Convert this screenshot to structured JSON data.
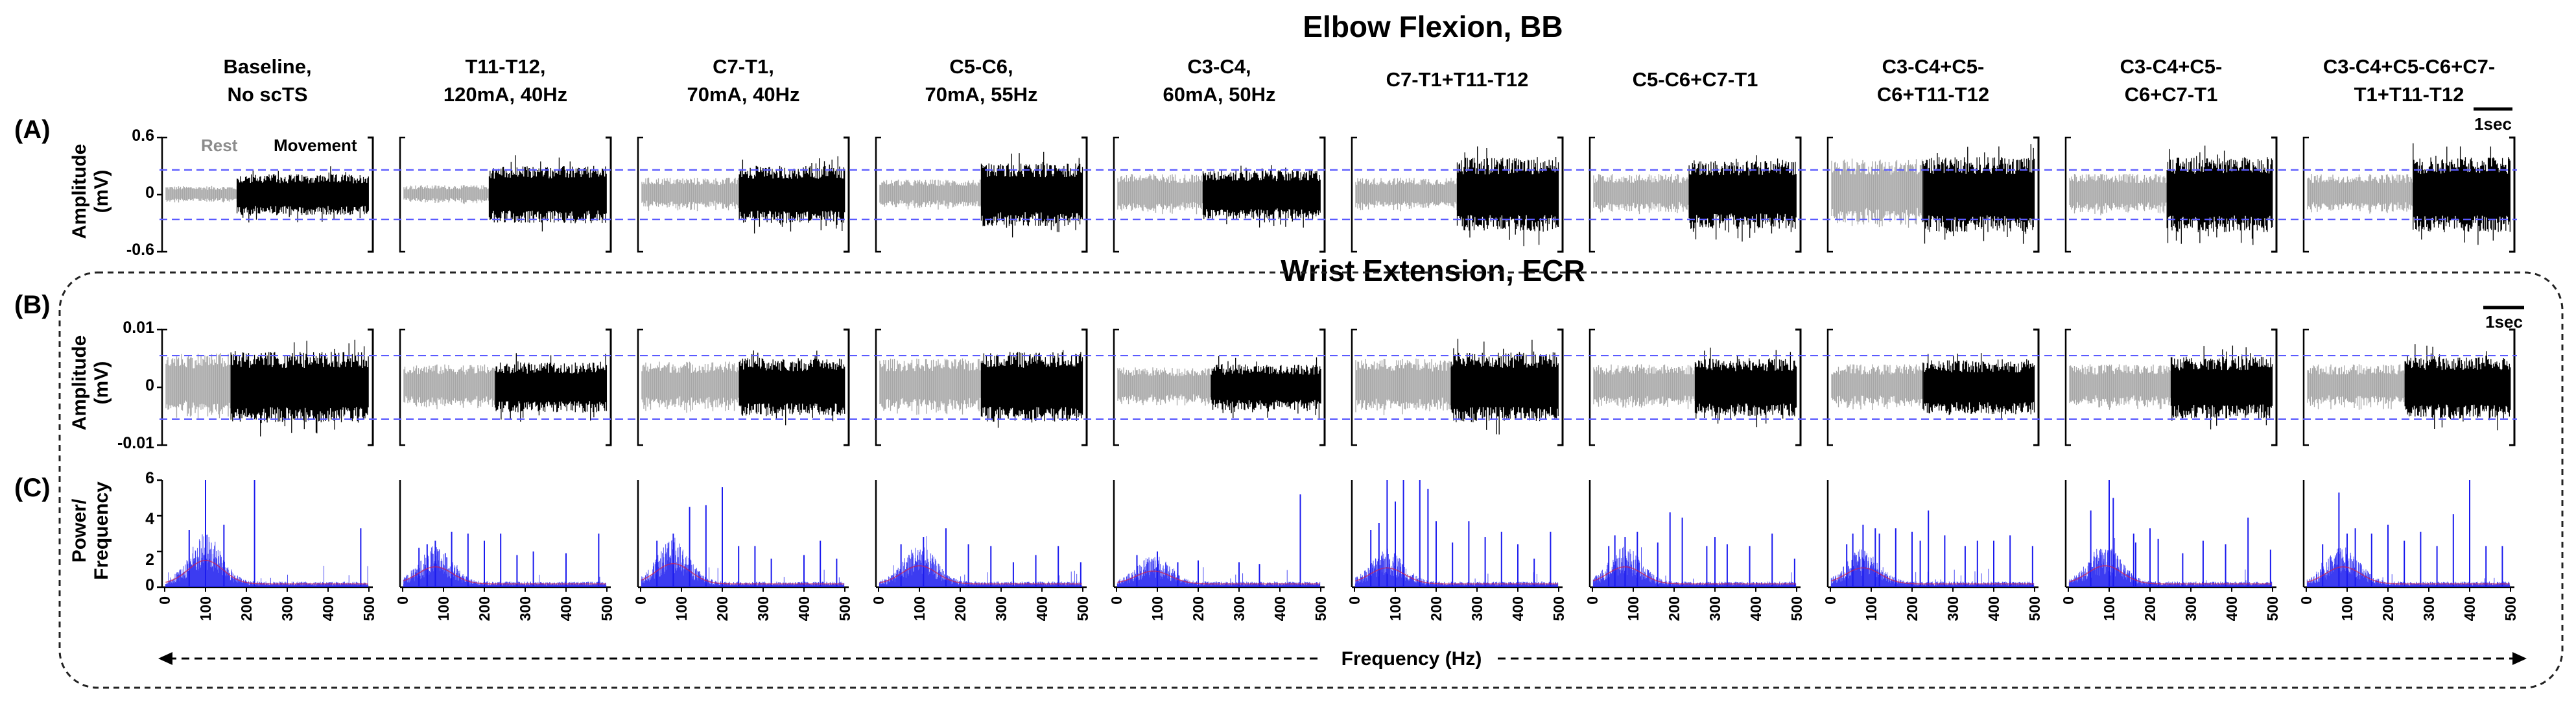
{
  "figure": {
    "title_a": "Elbow Flexion, BB",
    "title_b": "Wrist Extension, ECR",
    "panel_labels": [
      "(A)",
      "(B)",
      "(C)"
    ],
    "rest_label": "Rest",
    "movement_label": "Movement",
    "scale_bar_label": "1sec",
    "frequency_label": "Frequency (Hz)"
  },
  "conditions": [
    {
      "line1": "Baseline,",
      "line2": "No scTS"
    },
    {
      "line1": "T11-T12,",
      "line2": "120mA, 40Hz"
    },
    {
      "line1": "C7-T1,",
      "line2": "70mA, 40Hz"
    },
    {
      "line1": "C5-C6,",
      "line2": "70mA, 55Hz"
    },
    {
      "line1": "C3-C4,",
      "line2": "60mA, 50Hz"
    },
    {
      "line1": "C7-T1+T11-T12",
      "line2": ""
    },
    {
      "line1": "C5-C6+C7-T1",
      "line2": ""
    },
    {
      "line1": "C3-C4+C5-",
      "line2": "C6+T11-T12"
    },
    {
      "line1": "C3-C4+C5-",
      "line2": "C6+C7-T1"
    },
    {
      "line1": "C3-C4+C5-C6+C7-",
      "line2": "T1+T11-T12"
    }
  ],
  "chart_data": [
    {
      "type": "line",
      "panel": "(A)",
      "title": "Elbow Flexion, BB",
      "ylabel_line1": "Amplitude",
      "ylabel_line2": "(mV)",
      "yticks": [
        "0.6",
        "0",
        "-0.6"
      ],
      "ylim": [
        -0.6,
        0.6
      ],
      "threshold_mV": [
        0.26,
        -0.26
      ],
      "series": [
        {
          "condition": 0,
          "rest_amplitude_mV": 0.09,
          "movement_amplitude_mV": 0.3,
          "movement_onset_fraction": 0.35
        },
        {
          "condition": 1,
          "rest_amplitude_mV": 0.1,
          "movement_amplitude_mV": 0.42,
          "movement_onset_fraction": 0.42
        },
        {
          "condition": 2,
          "rest_amplitude_mV": 0.18,
          "movement_amplitude_mV": 0.42,
          "movement_onset_fraction": 0.48
        },
        {
          "condition": 3,
          "rest_amplitude_mV": 0.16,
          "movement_amplitude_mV": 0.46,
          "movement_onset_fraction": 0.5
        },
        {
          "condition": 4,
          "rest_amplitude_mV": 0.22,
          "movement_amplitude_mV": 0.36,
          "movement_onset_fraction": 0.42
        },
        {
          "condition": 5,
          "rest_amplitude_mV": 0.18,
          "movement_amplitude_mV": 0.54,
          "movement_onset_fraction": 0.5
        },
        {
          "condition": 6,
          "rest_amplitude_mV": 0.22,
          "movement_amplitude_mV": 0.5,
          "movement_onset_fraction": 0.47
        },
        {
          "condition": 7,
          "rest_amplitude_mV": 0.38,
          "movement_amplitude_mV": 0.55,
          "movement_onset_fraction": 0.45
        },
        {
          "condition": 8,
          "rest_amplitude_mV": 0.22,
          "movement_amplitude_mV": 0.55,
          "movement_onset_fraction": 0.48
        },
        {
          "condition": 9,
          "rest_amplitude_mV": 0.22,
          "movement_amplitude_mV": 0.55,
          "movement_onset_fraction": 0.52
        }
      ]
    },
    {
      "type": "line",
      "panel": "(B)",
      "title": "Wrist Extension, ECR",
      "ylabel_line1": "Amplitude",
      "ylabel_line2": "(mV)",
      "yticks": [
        "0.01",
        "0",
        "-0.01"
      ],
      "ylim": [
        -0.01,
        0.01
      ],
      "threshold_mV": [
        0.0055,
        -0.0055
      ],
      "series": [
        {
          "condition": 0,
          "rest_amplitude_mV": 0.006,
          "movement_amplitude_mV": 0.0085,
          "movement_onset_fraction": 0.32
        },
        {
          "condition": 1,
          "rest_amplitude_mV": 0.004,
          "movement_amplitude_mV": 0.006,
          "movement_onset_fraction": 0.45
        },
        {
          "condition": 2,
          "rest_amplitude_mV": 0.0045,
          "movement_amplitude_mV": 0.007,
          "movement_onset_fraction": 0.48
        },
        {
          "condition": 3,
          "rest_amplitude_mV": 0.005,
          "movement_amplitude_mV": 0.0085,
          "movement_onset_fraction": 0.5
        },
        {
          "condition": 4,
          "rest_amplitude_mV": 0.0035,
          "movement_amplitude_mV": 0.0055,
          "movement_onset_fraction": 0.46
        },
        {
          "condition": 5,
          "rest_amplitude_mV": 0.005,
          "movement_amplitude_mV": 0.0085,
          "movement_onset_fraction": 0.47
        },
        {
          "condition": 6,
          "rest_amplitude_mV": 0.004,
          "movement_amplitude_mV": 0.007,
          "movement_onset_fraction": 0.5
        },
        {
          "condition": 7,
          "rest_amplitude_mV": 0.004,
          "movement_amplitude_mV": 0.0065,
          "movement_onset_fraction": 0.45
        },
        {
          "condition": 8,
          "rest_amplitude_mV": 0.004,
          "movement_amplitude_mV": 0.0075,
          "movement_onset_fraction": 0.5
        },
        {
          "condition": 9,
          "rest_amplitude_mV": 0.004,
          "movement_amplitude_mV": 0.0075,
          "movement_onset_fraction": 0.48
        }
      ]
    },
    {
      "type": "line",
      "panel": "(C)",
      "xlabel": "Frequency (Hz)",
      "ylabel_line1": "Power/",
      "ylabel_line2": "Frequency",
      "xticks": [
        "0",
        "100",
        "200",
        "300",
        "400",
        "500"
      ],
      "xlim": [
        0,
        500
      ],
      "yticks": [
        "6",
        "4",
        "2",
        "0"
      ],
      "ylim": [
        0,
        6
      ],
      "series": [
        {
          "condition": 0,
          "peak_hz": 100,
          "peak_power": 2.2,
          "spikes": [
            [
              60,
              3.2
            ],
            [
              100,
              6
            ],
            [
              145,
              3.5
            ],
            [
              220,
              6
            ],
            [
              480,
              3.3
            ]
          ]
        },
        {
          "condition": 1,
          "peak_hz": 80,
          "peak_power": 1.6,
          "spikes": [
            [
              40,
              2.2
            ],
            [
              60,
              2.4
            ],
            [
              80,
              2.6
            ],
            [
              120,
              3.1
            ],
            [
              160,
              3.0
            ],
            [
              200,
              2.6
            ],
            [
              240,
              3.0
            ],
            [
              280,
              1.8
            ],
            [
              320,
              2.0
            ],
            [
              400,
              1.9
            ],
            [
              480,
              3.0
            ]
          ]
        },
        {
          "condition": 2,
          "peak_hz": 80,
          "peak_power": 1.9,
          "spikes": [
            [
              40,
              2.6
            ],
            [
              80,
              3.0
            ],
            [
              120,
              4.5
            ],
            [
              160,
              4.6
            ],
            [
              200,
              5.6
            ],
            [
              240,
              2.3
            ],
            [
              280,
              2.3
            ],
            [
              320,
              1.6
            ],
            [
              400,
              1.8
            ],
            [
              440,
              2.6
            ],
            [
              480,
              1.6
            ]
          ]
        },
        {
          "condition": 3,
          "peak_hz": 100,
          "peak_power": 1.7,
          "spikes": [
            [
              55,
              2.4
            ],
            [
              110,
              2.8
            ],
            [
              165,
              3.3
            ],
            [
              220,
              2.4
            ],
            [
              275,
              2.3
            ],
            [
              330,
              1.4
            ],
            [
              385,
              1.8
            ],
            [
              440,
              2.3
            ],
            [
              495,
              1.4
            ]
          ]
        },
        {
          "condition": 4,
          "peak_hz": 90,
          "peak_power": 1.2,
          "spikes": [
            [
              50,
              1.8
            ],
            [
              100,
              2.0
            ],
            [
              150,
              1.4
            ],
            [
              200,
              1.5
            ],
            [
              300,
              1.4
            ],
            [
              350,
              1.3
            ],
            [
              450,
              5.2
            ]
          ]
        },
        {
          "condition": 5,
          "peak_hz": 80,
          "peak_power": 1.5,
          "spikes": [
            [
              40,
              3.2
            ],
            [
              60,
              3.6
            ],
            [
              80,
              6
            ],
            [
              100,
              4.8
            ],
            [
              120,
              6
            ],
            [
              160,
              6
            ],
            [
              180,
              5.5
            ],
            [
              200,
              3.7
            ],
            [
              240,
              2.5
            ],
            [
              280,
              3.7
            ],
            [
              320,
              2.8
            ],
            [
              360,
              3.1
            ],
            [
              400,
              2.4
            ],
            [
              440,
              1.6
            ],
            [
              480,
              3.1
            ]
          ]
        },
        {
          "condition": 6,
          "peak_hz": 80,
          "peak_power": 1.6,
          "spikes": [
            [
              40,
              2.3
            ],
            [
              55,
              2.9
            ],
            [
              80,
              2.8
            ],
            [
              110,
              3.1
            ],
            [
              160,
              2.5
            ],
            [
              190,
              4.2
            ],
            [
              220,
              3.9
            ],
            [
              280,
              2.3
            ],
            [
              300,
              2.8
            ],
            [
              330,
              2.4
            ],
            [
              385,
              2.3
            ],
            [
              440,
              3.0
            ],
            [
              495,
              1.6
            ]
          ]
        },
        {
          "condition": 7,
          "peak_hz": 80,
          "peak_power": 1.5,
          "spikes": [
            [
              40,
              2.4
            ],
            [
              55,
              3.0
            ],
            [
              80,
              3.5
            ],
            [
              110,
              3.3
            ],
            [
              120,
              3.0
            ],
            [
              160,
              3.3
            ],
            [
              200,
              3.1
            ],
            [
              220,
              2.6
            ],
            [
              240,
              4.3
            ],
            [
              280,
              2.9
            ],
            [
              330,
              2.3
            ],
            [
              360,
              2.6
            ],
            [
              400,
              2.6
            ],
            [
              440,
              2.9
            ],
            [
              495,
              2.3
            ]
          ]
        },
        {
          "condition": 8,
          "peak_hz": 90,
          "peak_power": 1.7,
          "spikes": [
            [
              55,
              4.3
            ],
            [
              100,
              6
            ],
            [
              110,
              5.0
            ],
            [
              160,
              3.0
            ],
            [
              165,
              2.5
            ],
            [
              200,
              3.3
            ],
            [
              220,
              2.7
            ],
            [
              280,
              1.9
            ],
            [
              330,
              2.6
            ],
            [
              385,
              2.4
            ],
            [
              440,
              3.9
            ],
            [
              495,
              2.1
            ]
          ]
        },
        {
          "condition": 9,
          "peak_hz": 90,
          "peak_power": 1.6,
          "spikes": [
            [
              40,
              2.4
            ],
            [
              80,
              5.3
            ],
            [
              100,
              3.0
            ],
            [
              120,
              3.3
            ],
            [
              160,
              3.0
            ],
            [
              200,
              3.5
            ],
            [
              240,
              2.6
            ],
            [
              280,
              3.1
            ],
            [
              320,
              2.3
            ],
            [
              360,
              4.1
            ],
            [
              400,
              6
            ],
            [
              440,
              2.3
            ],
            [
              480,
              2.3
            ]
          ]
        }
      ]
    }
  ],
  "colors": {
    "rest": "#a6a6a6",
    "movement": "#000000",
    "spectrum": "#1a1aee",
    "spectrum_mean": "#d0204a",
    "threshold": "#5a5aff",
    "rest_label": "#8c8c8c"
  }
}
